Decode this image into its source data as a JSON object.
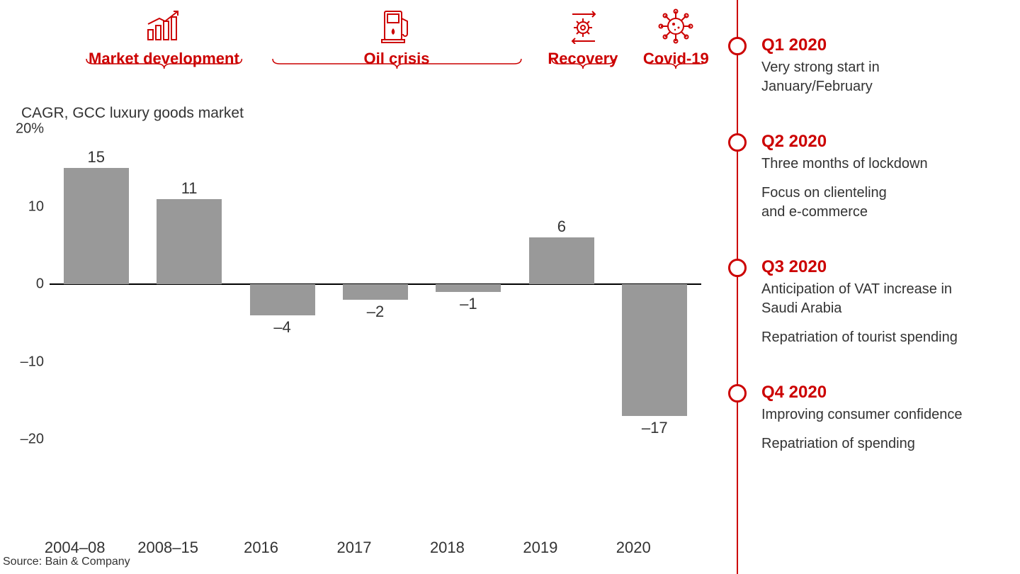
{
  "chart": {
    "title": "CAGR, GCC luxury goods market",
    "type": "bar",
    "bar_color": "#999999",
    "text_color": "#333333",
    "baseline_color": "#000000",
    "accent_color": "#cc0000",
    "background_color": "#ffffff",
    "ylim": [
      -22,
      20
    ],
    "ytick_labels": [
      "20%",
      "10",
      "0",
      "–10",
      "–20"
    ],
    "ytick_values": [
      20,
      10,
      0,
      -10,
      -20
    ],
    "bar_width": 0.7,
    "categories": [
      "2004–08",
      "2008–15",
      "2016",
      "2017",
      "2018",
      "2019",
      "2020"
    ],
    "values": [
      15,
      11,
      -4,
      -2,
      -1,
      6,
      -17
    ],
    "value_labels": [
      "15",
      "11",
      "–4",
      "–2",
      "–1",
      "6",
      "–17"
    ],
    "periods": [
      {
        "label": "Market development",
        "icon": "growth-chart-icon",
        "span": [
          0,
          1
        ]
      },
      {
        "label": "Oil crisis",
        "icon": "fuel-pump-icon",
        "span": [
          2,
          4
        ]
      },
      {
        "label": "Recovery",
        "icon": "gear-cycle-icon",
        "span": [
          5,
          5
        ]
      },
      {
        "label": "Covid-19",
        "icon": "virus-icon",
        "span": [
          6,
          6
        ]
      }
    ]
  },
  "timeline": [
    {
      "title": "Q1 2020",
      "lines": [
        "Very strong start in\nJanuary/February"
      ]
    },
    {
      "title": "Q2 2020",
      "lines": [
        "Three months of lockdown",
        "Focus on clienteling\nand e-commerce"
      ]
    },
    {
      "title": "Q3 2020",
      "lines": [
        "Anticipation of VAT increase in\nSaudi Arabia",
        "Repatriation of tourist spending"
      ]
    },
    {
      "title": "Q4 2020",
      "lines": [
        "Improving consumer confidence",
        "Repatriation of spending"
      ]
    }
  ],
  "source": "Source: Bain & Company"
}
